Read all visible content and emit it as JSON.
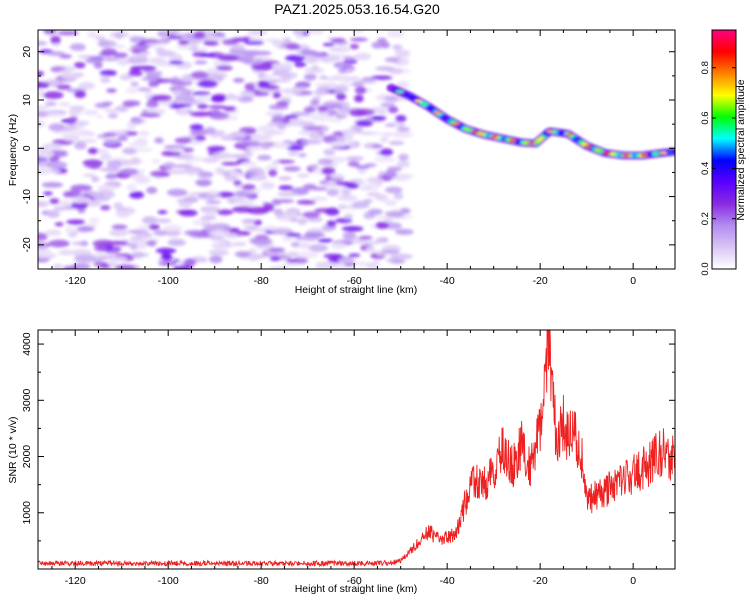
{
  "figure": {
    "title": "PAZ1.2025.053.16.54.G20"
  },
  "chart_data": [
    {
      "type": "heatmap",
      "xlabel": "Height of straight line (km)",
      "ylabel": "Frequency (Hz)",
      "xlim": [
        -128,
        9
      ],
      "ylim": [
        -25,
        24.5
      ],
      "xticks": [
        -120,
        -100,
        -80,
        -60,
        -40,
        -20,
        0
      ],
      "yticks": [
        -20,
        -10,
        0,
        10,
        20
      ],
      "colorbar": {
        "label": "Normalized spectral amplitude",
        "ticks": [
          0.0,
          0.2,
          0.4,
          0.6,
          0.8
        ],
        "range": [
          0,
          0.95
        ],
        "colormap": [
          "#ffffff",
          "#d9c6f5",
          "#b38cf0",
          "#8a2be2",
          "#5a00ff",
          "#0000ff",
          "#00ffff",
          "#00ff00",
          "#ffff00",
          "#ff8000",
          "#ff0000",
          "#ff0080"
        ]
      },
      "noise_region_x": [
        -128,
        -49
      ],
      "signal_track": {
        "x": [
          -52,
          -48,
          -44,
          -40,
          -36,
          -32,
          -28,
          -24,
          -21,
          -18,
          -14,
          -10,
          -6,
          -2,
          2,
          6,
          9
        ],
        "frequency": [
          12.5,
          10.8,
          8.6,
          6.0,
          4.0,
          2.8,
          2.0,
          1.2,
          1.0,
          3.5,
          3.0,
          0.5,
          -1.0,
          -1.5,
          -1.5,
          -1.0,
          -0.7
        ],
        "peak_amplitude": [
          0.3,
          0.45,
          0.6,
          0.55,
          0.65,
          0.75,
          0.7,
          0.6,
          0.8,
          0.55,
          0.6,
          0.7,
          0.65,
          0.75,
          0.7,
          0.55,
          0.45
        ]
      }
    },
    {
      "type": "line",
      "xlabel": "Height of straight line (km)",
      "ylabel": "SNR (10 * v/v)",
      "xlim": [
        -128,
        9
      ],
      "ylim": [
        0,
        4250
      ],
      "xticks": [
        -120,
        -100,
        -80,
        -60,
        -40,
        -20,
        0
      ],
      "yticks": [
        1000,
        2000,
        3000,
        4000
      ],
      "color": "#ee2020",
      "series": [
        {
          "x": [
            -128,
            -120,
            -110,
            -100,
            -90,
            -80,
            -70,
            -60,
            -56,
            -52,
            -50,
            -48,
            -46,
            -44,
            -43,
            -42,
            -40,
            -38,
            -36,
            -34,
            -32,
            -30,
            -28,
            -26,
            -24,
            -22,
            -20,
            -19,
            -18,
            -17,
            -16,
            -15,
            -14,
            -13,
            -12,
            -11,
            -10,
            -8,
            -6,
            -4,
            -2,
            0,
            2,
            4,
            6,
            8,
            9
          ],
          "y": [
            100,
            100,
            100,
            100,
            100,
            100,
            100,
            100,
            100,
            110,
            150,
            300,
            500,
            700,
            600,
            550,
            550,
            650,
            1200,
            1600,
            1500,
            1700,
            2100,
            1800,
            2200,
            1800,
            2500,
            3500,
            4200,
            2700,
            2200,
            2700,
            2300,
            2600,
            2100,
            2000,
            1200,
            1300,
            1400,
            1500,
            1600,
            1700,
            1800,
            1900,
            2100,
            2000,
            1900
          ]
        }
      ]
    }
  ]
}
